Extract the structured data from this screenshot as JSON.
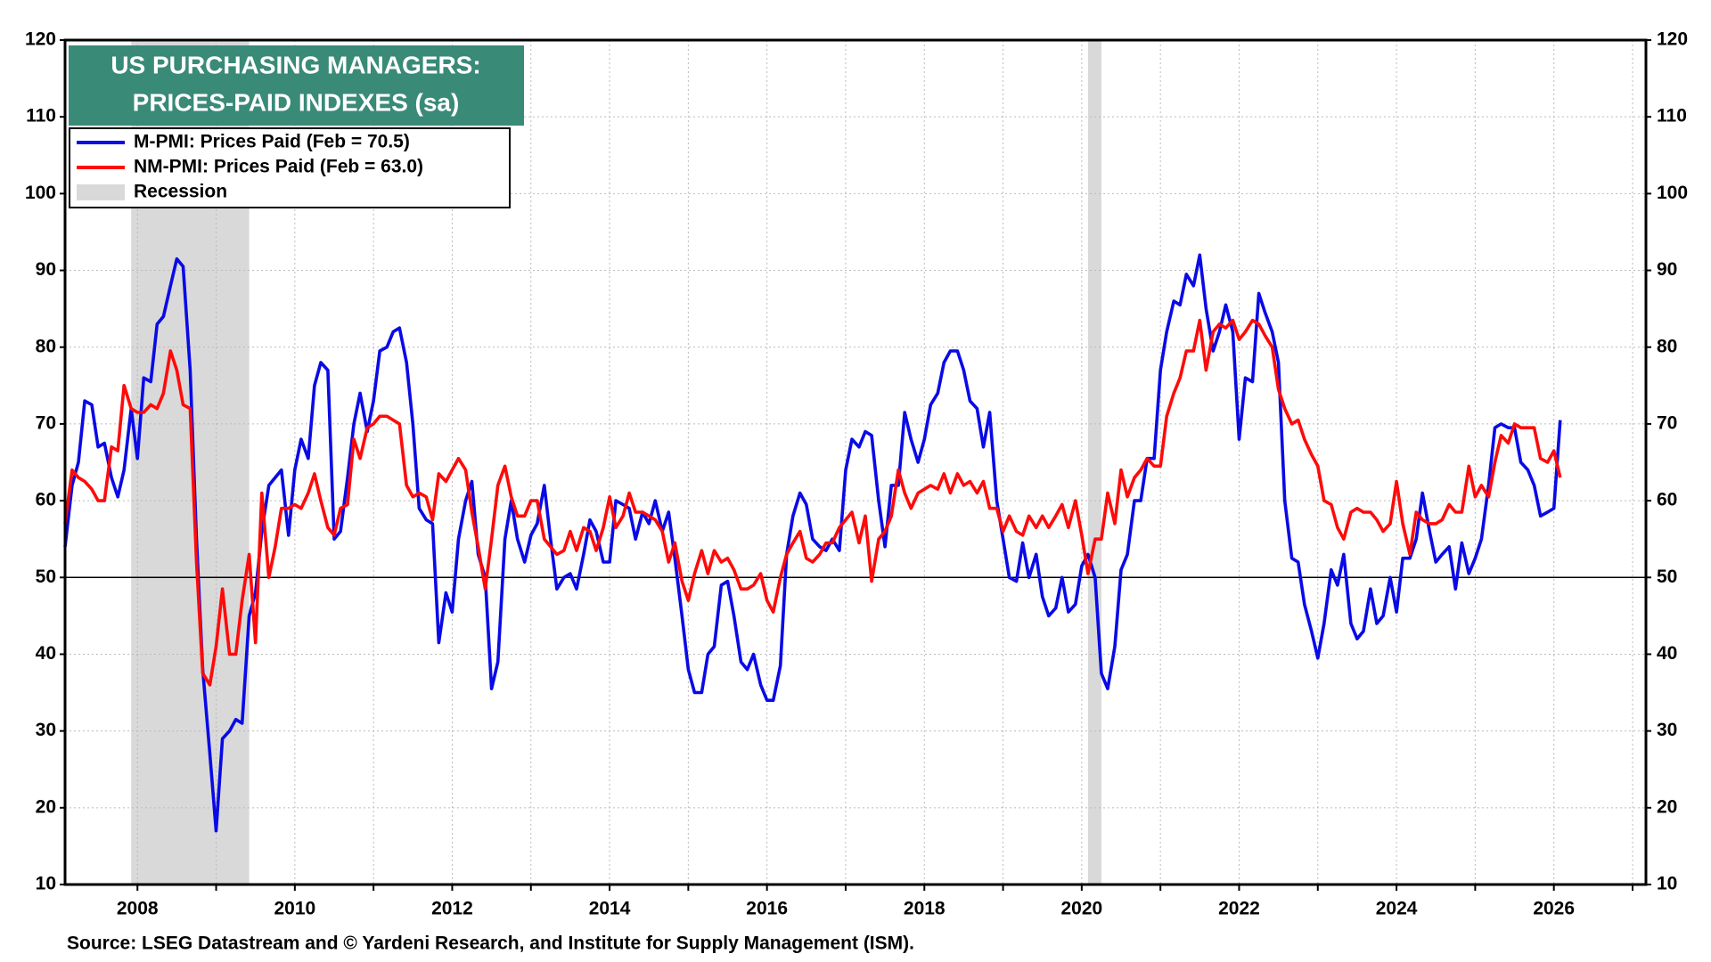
{
  "chart_data": {
    "type": "line",
    "title": [
      "US  PURCHASING MANAGERS:",
      "PRICES-PAID INDEXES (sa)"
    ],
    "source": "Source: LSEG Datastream and © Yardeni Research, and Institute for Supply Management (ISM).",
    "recession_label": "Recession",
    "recession_color": "#d9d9d9",
    "recessions": [
      {
        "start": 2007.92,
        "end": 2009.42
      },
      {
        "start": 2020.08,
        "end": 2020.25
      }
    ],
    "reference_line": 50,
    "grid": true,
    "xlim": [
      2007.08,
      2027.17
    ],
    "xticks": [
      2008,
      2010,
      2012,
      2014,
      2016,
      2018,
      2020,
      2022,
      2024,
      2026
    ],
    "xminorticks": [
      2009,
      2011,
      2013,
      2015,
      2017,
      2019,
      2021,
      2023,
      2025,
      2027
    ],
    "ylim": [
      10,
      120
    ],
    "yticks": [
      10,
      20,
      30,
      40,
      50,
      60,
      70,
      80,
      90,
      100,
      110,
      120
    ],
    "y2lim": [
      10,
      120
    ],
    "y2ticks": [
      10,
      20,
      30,
      40,
      50,
      60,
      70,
      80,
      90,
      100,
      110,
      120
    ],
    "x": [
      2007.08,
      2007.17,
      2007.25,
      2007.33,
      2007.42,
      2007.5,
      2007.58,
      2007.67,
      2007.75,
      2007.83,
      2007.92,
      2008.0,
      2008.08,
      2008.17,
      2008.25,
      2008.33,
      2008.42,
      2008.5,
      2008.58,
      2008.67,
      2008.75,
      2008.83,
      2008.92,
      2009.0,
      2009.08,
      2009.17,
      2009.25,
      2009.33,
      2009.42,
      2009.5,
      2009.58,
      2009.67,
      2009.75,
      2009.83,
      2009.92,
      2010.0,
      2010.08,
      2010.17,
      2010.25,
      2010.33,
      2010.42,
      2010.5,
      2010.58,
      2010.67,
      2010.75,
      2010.83,
      2010.92,
      2011.0,
      2011.08,
      2011.17,
      2011.25,
      2011.33,
      2011.42,
      2011.5,
      2011.58,
      2011.67,
      2011.75,
      2011.83,
      2011.92,
      2012.0,
      2012.08,
      2012.17,
      2012.25,
      2012.33,
      2012.42,
      2012.5,
      2012.58,
      2012.67,
      2012.75,
      2012.83,
      2012.92,
      2013.0,
      2013.08,
      2013.17,
      2013.25,
      2013.33,
      2013.42,
      2013.5,
      2013.58,
      2013.67,
      2013.75,
      2013.83,
      2013.92,
      2014.0,
      2014.08,
      2014.17,
      2014.25,
      2014.33,
      2014.42,
      2014.5,
      2014.58,
      2014.67,
      2014.75,
      2014.83,
      2014.92,
      2015.0,
      2015.08,
      2015.17,
      2015.25,
      2015.33,
      2015.42,
      2015.5,
      2015.58,
      2015.67,
      2015.75,
      2015.83,
      2015.92,
      2016.0,
      2016.08,
      2016.17,
      2016.25,
      2016.33,
      2016.42,
      2016.5,
      2016.58,
      2016.67,
      2016.75,
      2016.83,
      2016.92,
      2017.0,
      2017.08,
      2017.17,
      2017.25,
      2017.33,
      2017.42,
      2017.5,
      2017.58,
      2017.67,
      2017.75,
      2017.83,
      2017.92,
      2018.0,
      2018.08,
      2018.17,
      2018.25,
      2018.33,
      2018.42,
      2018.5,
      2018.58,
      2018.67,
      2018.75,
      2018.83,
      2018.92,
      2019.0,
      2019.08,
      2019.17,
      2019.25,
      2019.33,
      2019.42,
      2019.5,
      2019.58,
      2019.67,
      2019.75,
      2019.83,
      2019.92,
      2020.0,
      2020.08,
      2020.17,
      2020.25,
      2020.33,
      2020.42,
      2020.5,
      2020.58,
      2020.67,
      2020.75,
      2020.83,
      2020.92,
      2021.0,
      2021.08,
      2021.17,
      2021.25,
      2021.33,
      2021.42,
      2021.5,
      2021.58,
      2021.67,
      2021.75,
      2021.83,
      2021.92,
      2022.0,
      2022.08,
      2022.17,
      2022.25,
      2022.33,
      2022.42,
      2022.5,
      2022.58,
      2022.67,
      2022.75,
      2022.83,
      2022.92,
      2023.0,
      2023.08,
      2023.17,
      2023.25,
      2023.33,
      2023.42,
      2023.5,
      2023.58,
      2023.67,
      2023.75,
      2023.83,
      2023.92,
      2024.0,
      2024.08,
      2024.17,
      2024.25,
      2024.33,
      2024.42,
      2024.5,
      2024.58,
      2024.67,
      2024.75,
      2024.83,
      2024.92,
      2025.0,
      2025.08,
      2025.17,
      2025.25,
      2025.33,
      2025.42,
      2025.5,
      2025.58,
      2025.67,
      2025.75,
      2025.83,
      2025.92,
      2026.0,
      2026.08
    ],
    "series": [
      {
        "name": "M-PMI: Prices Paid (Feb = 70.5)",
        "color": "#0a0ae6",
        "values": [
          54,
          62,
          65,
          73,
          72.5,
          67,
          67.5,
          63,
          60.5,
          64,
          72,
          65.5,
          76,
          75.5,
          83,
          84,
          88,
          91.5,
          90.5,
          77,
          55,
          38,
          27,
          17,
          29,
          30,
          31.5,
          31,
          45,
          48,
          56,
          62,
          63,
          64,
          55.5,
          64,
          68,
          65.5,
          75,
          78,
          77,
          55,
          56,
          63,
          70,
          74,
          69,
          73,
          79.5,
          80,
          82,
          82.5,
          78,
          70,
          59,
          57.5,
          57,
          41.5,
          48,
          45.5,
          55,
          60,
          62.5,
          53,
          50,
          35.5,
          39,
          55,
          60,
          55,
          52,
          55.5,
          57,
          62,
          55,
          48.5,
          50,
          50.5,
          48.5,
          53,
          57.5,
          56,
          52,
          52,
          60,
          59.5,
          59,
          55,
          58.5,
          57,
          60,
          56,
          58.5,
          52.5,
          45,
          38,
          35,
          35,
          40,
          41,
          49,
          49.5,
          45,
          39,
          38,
          40,
          36,
          34,
          34,
          38.5,
          53,
          58,
          61,
          59.5,
          55,
          54,
          53.5,
          55,
          53.5,
          64,
          68,
          67,
          69,
          68.5,
          60,
          54,
          62,
          62,
          71.5,
          68,
          65,
          68,
          72.5,
          74,
          78,
          79.5,
          79.5,
          77,
          73,
          72,
          67,
          71.5,
          60,
          55,
          50,
          49.5,
          54.5,
          50,
          53,
          47.5,
          45,
          46,
          50,
          45.5,
          46.5,
          51.5,
          53,
          50,
          37.5,
          35.5,
          41,
          51,
          53,
          60,
          60,
          65.5,
          65.5,
          77,
          82,
          86,
          85.5,
          89.5,
          88,
          92,
          85,
          79.5,
          82,
          85.5,
          82,
          68,
          76,
          75.5,
          87,
          84.5,
          82,
          78,
          60,
          52.5,
          52,
          46.5,
          43,
          39.5,
          44,
          51,
          49,
          53,
          44,
          42,
          43,
          48.5,
          44,
          45,
          50,
          45.5,
          52.5,
          52.5,
          55,
          61,
          56,
          52,
          53,
          54,
          48.5,
          54.5,
          50.5,
          52.5,
          55,
          62,
          69.5,
          70,
          69.5,
          69.5,
          65,
          64,
          62,
          58,
          58.5,
          59,
          70.5
        ]
      },
      {
        "name": "NM-PMI: Prices Paid  (Feb = 63.0)",
        "color": "#ff0a0a",
        "values": [
          57,
          64,
          63,
          62.5,
          61.5,
          60,
          60,
          67,
          66.5,
          75,
          72,
          71.5,
          71.5,
          72.5,
          72,
          74,
          79.5,
          77,
          72.5,
          72,
          52,
          37.5,
          36,
          41,
          48.5,
          40,
          40,
          47,
          53,
          41.5,
          61,
          50,
          54,
          59,
          59,
          59.5,
          59,
          61,
          63.5,
          60,
          56.5,
          55.5,
          59,
          59.5,
          68,
          65.5,
          69.5,
          70,
          71,
          71,
          70.5,
          70,
          62,
          60.5,
          61,
          60.5,
          57.5,
          63.5,
          62.5,
          64,
          65.5,
          64,
          58.5,
          54,
          48.5,
          55,
          62,
          64.5,
          60.5,
          58,
          58,
          60,
          60,
          55,
          54,
          53,
          53.5,
          56,
          53.5,
          56.5,
          56,
          53.5,
          56.5,
          60.5,
          56.5,
          58,
          61,
          58.5,
          58.5,
          58,
          57.5,
          56,
          52,
          54.5,
          49.5,
          47,
          50.5,
          53.5,
          50.5,
          53.5,
          52,
          52.5,
          51,
          48.5,
          48.5,
          49,
          50.5,
          47,
          45.5,
          50,
          53,
          54.5,
          56,
          52.5,
          52,
          53,
          54.5,
          54.5,
          56.5,
          57.5,
          58.5,
          54.5,
          58,
          49.5,
          55,
          56,
          58,
          64,
          61,
          59,
          61,
          61.5,
          62,
          61.5,
          63.5,
          61,
          63.5,
          62,
          62.5,
          61,
          62.5,
          59,
          59,
          56,
          58,
          56,
          55.5,
          58,
          56.5,
          58,
          56.5,
          58,
          59.5,
          56.5,
          60,
          55.5,
          50.5,
          55,
          55,
          61,
          57,
          64,
          60.5,
          63,
          64,
          65.5,
          64.5,
          64.5,
          71,
          74,
          76,
          79.5,
          79.5,
          83.5,
          77,
          82,
          83,
          82.5,
          83.5,
          81,
          82,
          83.5,
          83,
          81.5,
          80,
          74.5,
          72,
          70,
          70.5,
          68,
          66,
          64.5,
          60,
          59.5,
          56.5,
          55,
          58.5,
          59,
          58.5,
          58.5,
          57.5,
          56,
          57,
          62.5,
          57,
          53,
          58.5,
          57.5,
          57,
          57,
          57.5,
          59.5,
          58.5,
          58.5,
          64.5,
          60.5,
          62,
          60.5,
          65,
          68.5,
          67.5,
          70,
          69.5,
          69.5,
          69.5,
          65.5,
          65,
          66.5,
          63
        ]
      }
    ]
  }
}
